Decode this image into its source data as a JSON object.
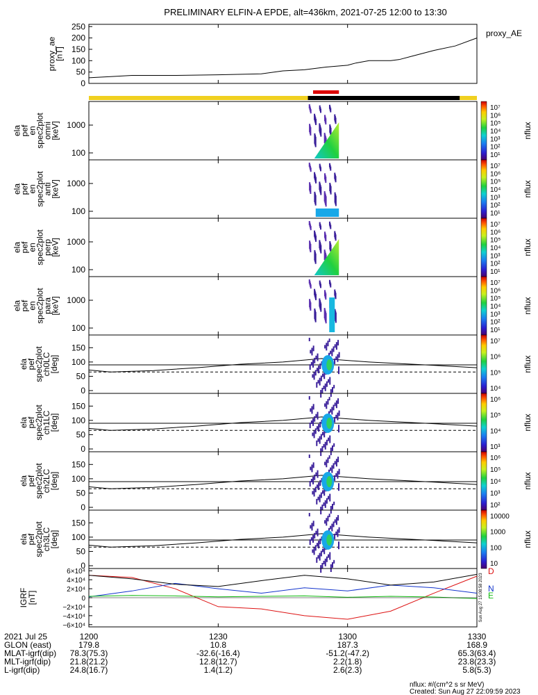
{
  "title": "PRELIMINARY ELFIN-A EPDE, alt=436km, 2021-07-25 12:00 to 13:30",
  "ae_panel": {
    "ylabel_lines": [
      "proxy_ae",
      "[nT]"
    ],
    "legend": "proxy_AE",
    "ticks": [
      "250",
      "200",
      "150",
      "100",
      "50",
      "0"
    ]
  },
  "spec_panels": [
    {
      "lines": [
        "ela",
        "pef",
        "en",
        "spec2plot",
        "omni",
        "[keV]"
      ],
      "ticks": [
        "1000",
        "100"
      ],
      "cbar_ticks": [
        "10⁷",
        "10⁶",
        "10⁵",
        "10⁴",
        "10³",
        "10²",
        "10¹"
      ],
      "cbar_label": "nflux"
    },
    {
      "lines": [
        "ela",
        "pef",
        "en",
        "spec2plot",
        "anti",
        "[keV]"
      ],
      "ticks": [
        "1000",
        "100"
      ],
      "cbar_ticks": [
        "10⁷",
        "10⁶",
        "10⁵",
        "10⁴",
        "10³",
        "10²",
        "10¹"
      ],
      "cbar_label": "nflux"
    },
    {
      "lines": [
        "ela",
        "pef",
        "en",
        "spec2plot",
        "perp",
        "[keV]"
      ],
      "ticks": [
        "1000",
        "100"
      ],
      "cbar_ticks": [
        "10⁷",
        "10⁶",
        "10⁵",
        "10⁴",
        "10³",
        "10²",
        "10¹"
      ],
      "cbar_label": "nflux"
    },
    {
      "lines": [
        "ela",
        "pef",
        "en",
        "spec2plot",
        "para",
        "[keV]"
      ],
      "ticks": [
        "1000",
        "100"
      ],
      "cbar_ticks": [
        "10⁷",
        "10⁶",
        "10⁵",
        "10⁴",
        "10³",
        "10²",
        "10¹"
      ],
      "cbar_label": "nflux"
    }
  ],
  "pa_panels": [
    {
      "lines": [
        "ela",
        "pef",
        "spec2plot",
        "ch0LC",
        "[deg]"
      ],
      "ticks": [
        "150",
        "100",
        "50",
        "0"
      ],
      "cbar_ticks": [
        "10⁷",
        "10⁶",
        "10⁵",
        "10⁴"
      ],
      "cbar_label": "nflux"
    },
    {
      "lines": [
        "ela",
        "pef",
        "spec2plot",
        "ch1LC",
        "[deg]"
      ],
      "ticks": [
        "150",
        "100",
        "50",
        "0"
      ],
      "cbar_ticks": [
        "10⁶",
        "10⁵",
        "10⁴",
        "10³"
      ],
      "cbar_label": "nflux"
    },
    {
      "lines": [
        "ela",
        "pef",
        "spec2plot",
        "ch2LC",
        "[deg]"
      ],
      "ticks": [
        "150",
        "100",
        "50",
        "0"
      ],
      "cbar_ticks": [
        "10⁶",
        "10⁵",
        "10⁴",
        "10³",
        "10²"
      ],
      "cbar_label": "nflux"
    },
    {
      "lines": [
        "ela",
        "pef",
        "spec2plot",
        "ch3LC",
        "[deg]"
      ],
      "ticks": [
        "150",
        "100",
        "50",
        "0"
      ],
      "cbar_ticks": [
        "10000",
        "1000",
        "100",
        "10"
      ],
      "cbar_label": "nflux"
    }
  ],
  "igrf_panel": {
    "ylabel_lines": [
      "IGRF",
      "[nT]"
    ],
    "ticks": [
      "6×10⁴",
      "4×10⁴",
      "2×10⁴",
      "0",
      "−2×10⁴",
      "−4×10⁴",
      "−6×10⁴"
    ],
    "legend": [
      {
        "label": "D",
        "color": "#dd1111"
      },
      {
        "label": "N",
        "color": "#1133cc"
      },
      {
        "label": "E",
        "color": "#11bb11"
      }
    ],
    "stamp": "Sun Aug 27 15:08:58 2023"
  },
  "bottom_table": {
    "rows": [
      {
        "label": "2021 Jul 25",
        "values": [
          "1200",
          "1230",
          "1300",
          "1330"
        ]
      },
      {
        "label": "GLON (east)",
        "values": [
          "179.8",
          "10.8",
          "187.3",
          "168.9"
        ]
      },
      {
        "label": "MLAT-igrf(dip)",
        "values": [
          "78.3(75.3)",
          "-32.6(-16.4)",
          "-51.2(-47.2)",
          "65.3(63.4)"
        ]
      },
      {
        "label": "MLT-igrf(dip)",
        "values": [
          "21.8(21.2)",
          "12.8(12.7)",
          "2.2(1.8)",
          "23.8(23.3)"
        ]
      },
      {
        "label": "L-igrf(dip)",
        "values": [
          "24.8(16.7)",
          "1.4(1.2)",
          "2.6(2.3)",
          "5.8(5.3)"
        ]
      }
    ]
  },
  "footer": {
    "units": "nflux: #/(cm^2 s sr MeV)",
    "created": "Created: Sun Aug 27 22:09:59 2023"
  },
  "colors": {
    "sunlit_bar": "#f0d020",
    "shadow_bar": "#000000",
    "science_bar": "#dd0000"
  },
  "chart_data": {
    "type": "line",
    "time_range": [
      "12:00",
      "13:30"
    ],
    "ae_series": {
      "name": "proxy_AE",
      "x_minutes": [
        0,
        5,
        10,
        20,
        30,
        40,
        45,
        50,
        55,
        60,
        62,
        65,
        70,
        72,
        75,
        80,
        85,
        90
      ],
      "y_nT": [
        25,
        30,
        35,
        35,
        38,
        42,
        55,
        60,
        72,
        80,
        90,
        100,
        100,
        105,
        120,
        145,
        165,
        200
      ],
      "ylim": [
        0,
        260
      ]
    },
    "igrf_series": [
      {
        "name": "D",
        "x_minutes": [
          0,
          10,
          20,
          30,
          40,
          50,
          60,
          70,
          80,
          90
        ],
        "y_nT": [
          50000,
          45000,
          20000,
          -20000,
          -25000,
          -40000,
          -48000,
          -30000,
          10000,
          48000
        ]
      },
      {
        "name": "N",
        "x_minutes": [
          0,
          10,
          20,
          30,
          40,
          50,
          60,
          70,
          80,
          90
        ],
        "y_nT": [
          2000,
          15000,
          32000,
          20000,
          10000,
          22000,
          15000,
          28000,
          22000,
          10000
        ]
      },
      {
        "name": "E",
        "x_minutes": [
          0,
          10,
          20,
          30,
          40,
          50,
          60,
          70,
          80,
          90
        ],
        "y_nT": [
          3000,
          5000,
          4000,
          2000,
          3000,
          4000,
          1000,
          3000,
          1500,
          -2000
        ]
      },
      {
        "name": "total",
        "x_minutes": [
          0,
          10,
          20,
          30,
          40,
          50,
          60,
          70,
          80,
          90
        ],
        "y_nT": [
          50000,
          42000,
          30000,
          25000,
          38000,
          50000,
          42000,
          28000,
          35000,
          52000
        ]
      }
    ],
    "igrf_ylim": [
      -65000,
      65000
    ],
    "event_window_minutes": [
      51,
      57
    ],
    "sunlit_shade": [
      [
        0,
        50.8
      ],
      [
        86,
        90
      ]
    ],
    "shadow": [
      50.8,
      86
    ],
    "science_zone": [
      52,
      58
    ],
    "loss_cone_line_deg": [
      72,
      65,
      70,
      80,
      92,
      100,
      112,
      100,
      90,
      80
    ],
    "loss_cone_x_minutes": [
      0,
      5,
      15,
      25,
      35,
      45,
      54,
      65,
      78,
      90
    ]
  }
}
